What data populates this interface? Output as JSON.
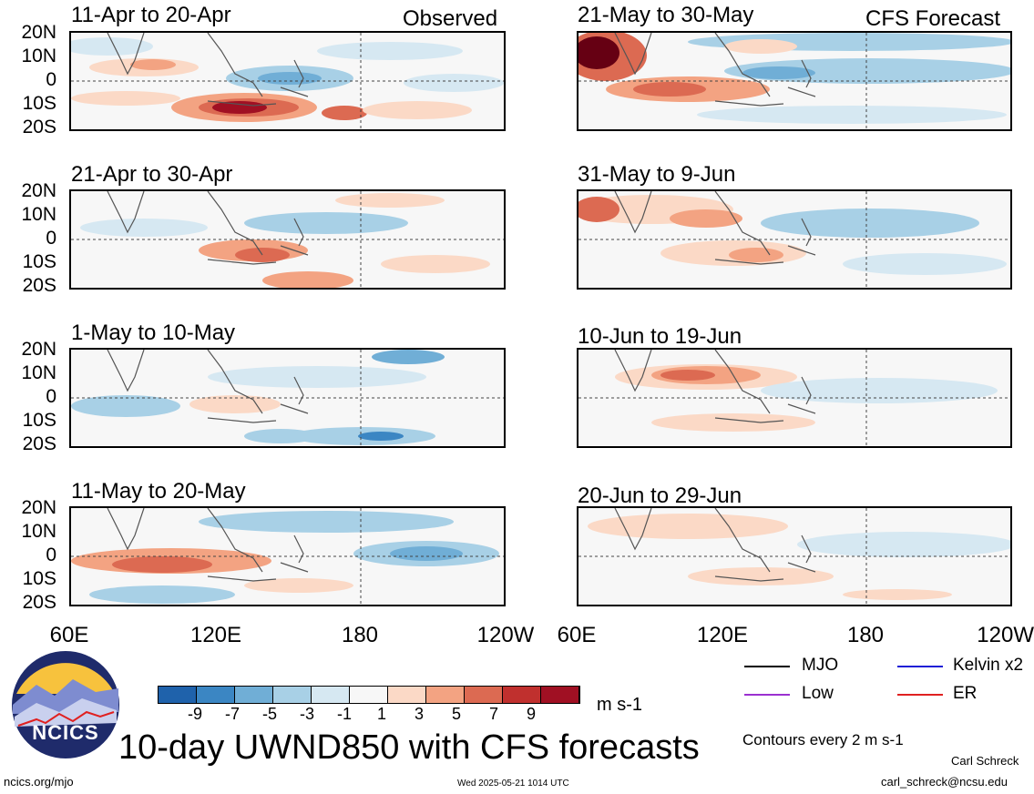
{
  "panels": [
    {
      "title": "11-Apr to 20-Apr",
      "tag": "Observed"
    },
    {
      "title": "21-May to 30-May",
      "tag": "CFS Forecast"
    },
    {
      "title": "21-Apr to 30-Apr",
      "tag": ""
    },
    {
      "title": "31-May to 9-Jun",
      "tag": ""
    },
    {
      "title": "1-May to 10-May",
      "tag": ""
    },
    {
      "title": "10-Jun to 19-Jun",
      "tag": ""
    },
    {
      "title": "11-May to 20-May",
      "tag": ""
    },
    {
      "title": "20-Jun to 29-Jun",
      "tag": ""
    }
  ],
  "lat_labels": [
    "20N",
    "10N",
    "0",
    "10S",
    "20S"
  ],
  "lon_labels": [
    "60E",
    "120E",
    "180",
    "120W"
  ],
  "colorbar": {
    "values": [
      "-9",
      "-7",
      "-5",
      "-3",
      "-1",
      "1",
      "3",
      "5",
      "7",
      "9"
    ],
    "colors": [
      "#08305b",
      "#1f62ab",
      "#3b86c3",
      "#70aed6",
      "#a8d0e6",
      "#d6e8f2",
      "#f7f7f7",
      "#fbd9c6",
      "#f3a382",
      "#dc6a52",
      "#c0302e",
      "#a01023",
      "#660013"
    ],
    "units": "m s-1"
  },
  "legend": {
    "items": [
      {
        "label": "MJO",
        "color": "#000000"
      },
      {
        "label": "Kelvin x2",
        "color": "#1f1fd6"
      },
      {
        "label": "Low",
        "color": "#9b30d0"
      },
      {
        "label": "ER",
        "color": "#e02020"
      }
    ],
    "contours": "Contours every 2 m s-1"
  },
  "logo": {
    "text": "NCICS"
  },
  "main_title": "10-day UWND850 with CFS forecasts",
  "footer": {
    "left": "ncics.org/mjo",
    "center": "Wed 2025-05-21 1014 UTC",
    "author": "Carl Schreck",
    "email": "carl_schreck@ncsu.edu"
  }
}
